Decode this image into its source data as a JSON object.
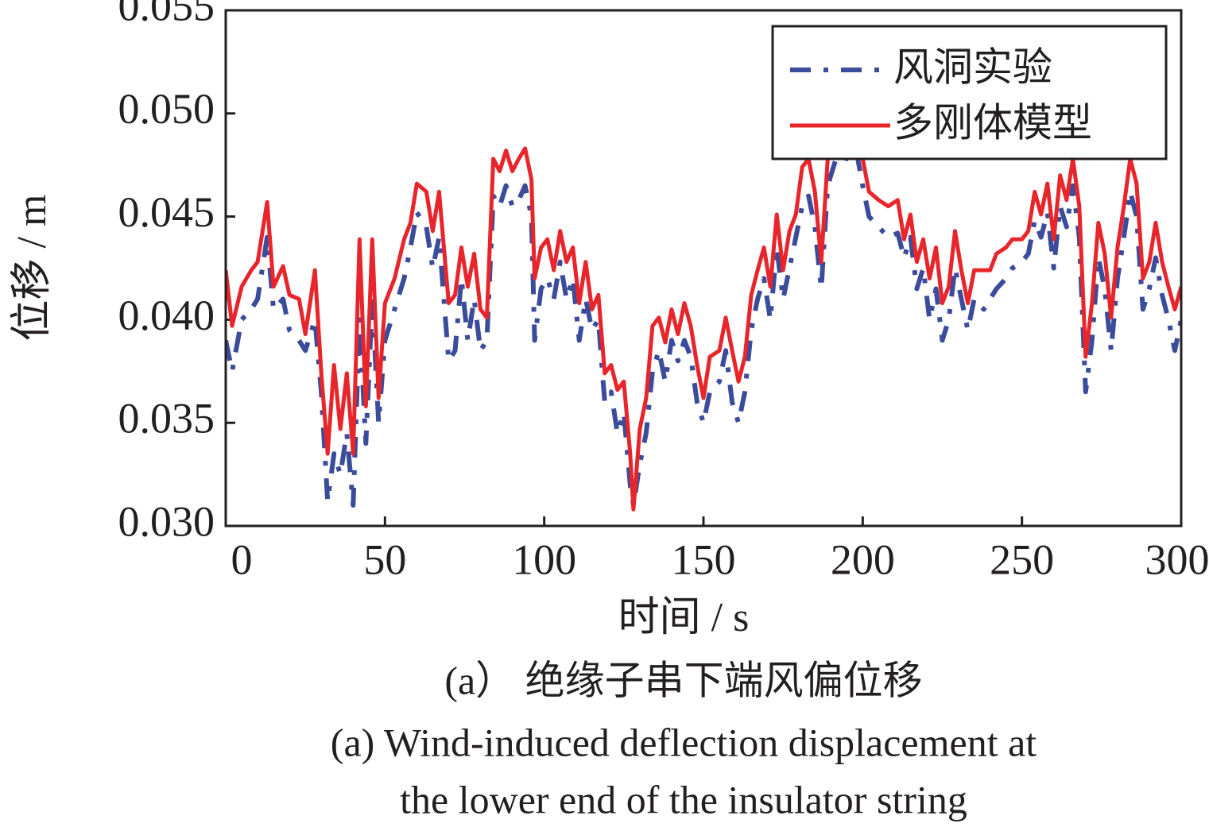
{
  "chart_data": {
    "type": "line",
    "xlabel": "时间 / s",
    "ylabel": "位移 / m",
    "caption_zh": "(a） 绝缘子串下端风偏位移",
    "caption_en": [
      "(a) Wind-induced deflection displacement at",
      "the lower end of the insulator string"
    ],
    "xlim": [
      0,
      300
    ],
    "xticks": [
      0,
      50,
      100,
      150,
      200,
      250,
      300
    ],
    "ylim": [
      0.03,
      0.055
    ],
    "yticks": [
      {
        "value": 0.03,
        "label": "0.030"
      },
      0.035,
      {
        "value": 0.04,
        "label": "0.040"
      },
      0.045,
      {
        "value": 0.05,
        "label": "0.050"
      },
      0.055
    ],
    "legend": "upper right",
    "grid": false,
    "x": [
      0,
      2,
      5,
      8,
      10,
      13,
      15,
      18,
      20,
      23,
      25,
      28,
      30,
      32,
      34,
      36,
      38,
      40,
      42,
      44,
      46,
      48,
      50,
      53,
      56,
      58,
      60,
      63,
      65,
      67,
      70,
      72,
      74,
      76,
      78,
      80,
      82,
      84,
      86,
      88,
      90,
      92,
      94,
      96,
      97,
      99,
      101,
      103,
      105,
      107,
      109,
      111,
      113,
      115,
      117,
      119,
      121,
      123,
      125,
      127,
      128,
      130,
      132,
      134,
      136,
      138,
      140,
      142,
      144,
      146,
      148,
      150,
      152,
      155,
      157,
      159,
      161,
      163,
      165,
      167,
      169,
      171,
      173,
      175,
      177,
      179,
      181,
      183,
      185,
      187,
      189,
      192,
      195,
      198,
      200,
      202,
      205,
      208,
      211,
      213,
      215,
      217,
      219,
      221,
      223,
      225,
      227,
      229,
      231,
      233,
      235,
      238,
      240,
      242,
      245,
      247,
      250,
      252,
      254,
      256,
      258,
      260,
      262,
      264,
      266,
      268,
      270,
      272,
      274,
      276,
      278,
      280,
      282,
      284,
      286,
      288,
      290,
      292,
      294,
      296,
      298,
      300
    ],
    "series": [
      {
        "name": "风洞实验",
        "color": "#3b4c9b",
        "dash": true,
        "values": [
          0.039,
          0.0375,
          0.04,
          0.0405,
          0.041,
          0.044,
          0.0405,
          0.041,
          0.0395,
          0.039,
          0.0385,
          0.04,
          0.0365,
          0.0312,
          0.0335,
          0.0325,
          0.0345,
          0.031,
          0.04,
          0.034,
          0.041,
          0.035,
          0.039,
          0.0405,
          0.042,
          0.0435,
          0.0452,
          0.0445,
          0.0425,
          0.044,
          0.038,
          0.0385,
          0.042,
          0.039,
          0.041,
          0.0385,
          0.039,
          0.046,
          0.0455,
          0.0465,
          0.0455,
          0.0458,
          0.0465,
          0.045,
          0.039,
          0.0415,
          0.042,
          0.041,
          0.0428,
          0.041,
          0.042,
          0.039,
          0.041,
          0.0395,
          0.04,
          0.036,
          0.0365,
          0.0345,
          0.0355,
          0.032,
          0.031,
          0.033,
          0.0345,
          0.0375,
          0.0385,
          0.037,
          0.039,
          0.038,
          0.039,
          0.0382,
          0.036,
          0.035,
          0.0365,
          0.037,
          0.0385,
          0.036,
          0.035,
          0.0365,
          0.0395,
          0.041,
          0.042,
          0.04,
          0.0435,
          0.041,
          0.0425,
          0.044,
          0.0455,
          0.046,
          0.0445,
          0.0415,
          0.0465,
          0.048,
          0.0478,
          0.0482,
          0.0465,
          0.045,
          0.0445,
          0.044,
          0.0442,
          0.043,
          0.044,
          0.0415,
          0.0425,
          0.04,
          0.0415,
          0.039,
          0.04,
          0.0425,
          0.041,
          0.0395,
          0.041,
          0.0405,
          0.041,
          0.0415,
          0.042,
          0.0425,
          0.0428,
          0.0432,
          0.0448,
          0.044,
          0.0452,
          0.0425,
          0.0455,
          0.0445,
          0.0465,
          0.044,
          0.0365,
          0.039,
          0.043,
          0.0415,
          0.0385,
          0.042,
          0.044,
          0.0462,
          0.045,
          0.0405,
          0.0415,
          0.043,
          0.0412,
          0.04,
          0.0385,
          0.04
        ]
      },
      {
        "name": "多刚体模型",
        "color": "#e8252b",
        "dash": false,
        "values": [
          0.0424,
          0.0397,
          0.0416,
          0.0424,
          0.0428,
          0.0457,
          0.0416,
          0.0426,
          0.0412,
          0.041,
          0.0393,
          0.0424,
          0.0374,
          0.0335,
          0.0378,
          0.0347,
          0.0374,
          0.0335,
          0.0439,
          0.0358,
          0.0439,
          0.0362,
          0.0408,
          0.042,
          0.0439,
          0.0447,
          0.0466,
          0.0462,
          0.0443,
          0.0462,
          0.0408,
          0.0412,
          0.0435,
          0.0416,
          0.0432,
          0.0405,
          0.0401,
          0.0478,
          0.0472,
          0.0482,
          0.0472,
          0.0478,
          0.0483,
          0.0468,
          0.042,
          0.0435,
          0.0439,
          0.0424,
          0.0443,
          0.0428,
          0.0435,
          0.0408,
          0.0428,
          0.0405,
          0.0412,
          0.0374,
          0.0378,
          0.0366,
          0.037,
          0.0335,
          0.0308,
          0.0347,
          0.0362,
          0.0397,
          0.0401,
          0.0389,
          0.0405,
          0.0393,
          0.0408,
          0.0397,
          0.0378,
          0.0362,
          0.0382,
          0.0385,
          0.0401,
          0.0385,
          0.037,
          0.0382,
          0.0412,
          0.0424,
          0.0435,
          0.0416,
          0.0451,
          0.0424,
          0.0443,
          0.0451,
          0.0474,
          0.0478,
          0.0462,
          0.0428,
          0.0478,
          0.0493,
          0.0489,
          0.0493,
          0.0478,
          0.0462,
          0.0458,
          0.0455,
          0.0458,
          0.0439,
          0.0451,
          0.0428,
          0.0439,
          0.042,
          0.0435,
          0.0408,
          0.0416,
          0.0443,
          0.0424,
          0.0408,
          0.0424,
          0.0424,
          0.0424,
          0.0432,
          0.0435,
          0.0439,
          0.0439,
          0.0443,
          0.0462,
          0.0451,
          0.0466,
          0.0439,
          0.047,
          0.0458,
          0.0478,
          0.0455,
          0.0382,
          0.0408,
          0.0447,
          0.0432,
          0.0401,
          0.0435,
          0.0455,
          0.0478,
          0.0466,
          0.042,
          0.0428,
          0.0447,
          0.0428,
          0.0416,
          0.0405,
          0.0416
        ]
      }
    ]
  }
}
